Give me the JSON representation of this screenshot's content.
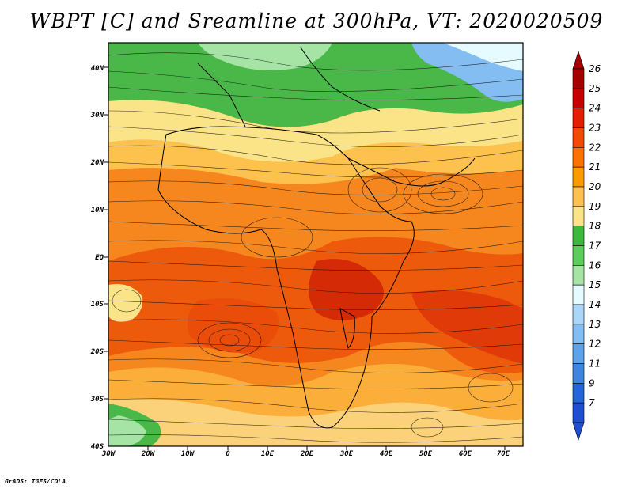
{
  "title": "WBPT [C] and Sreamline at 300hPa, VT: 2020020509",
  "footer": "GrADS: IGES/COLA",
  "map": {
    "lat_labels": [
      "40N",
      "30N",
      "20N",
      "10N",
      "EQ",
      "10S",
      "20S",
      "30S",
      "40S"
    ],
    "lon_labels": [
      "30W",
      "20W",
      "10W",
      "0",
      "10E",
      "20E",
      "30E",
      "40E",
      "50E",
      "60E",
      "70E"
    ]
  },
  "colorbar": {
    "levels": [
      "26",
      "25",
      "24",
      "23",
      "22",
      "21",
      "20",
      "19",
      "18",
      "17",
      "16",
      "15",
      "14",
      "13",
      "12",
      "11",
      "9",
      "7"
    ],
    "colors": [
      "#a50000",
      "#c60000",
      "#e22000",
      "#f24a00",
      "#fb7200",
      "#fd9a00",
      "#fdc14e",
      "#fbe487",
      "#3cb83c",
      "#5ccc5c",
      "#a6e4a6",
      "#e6fbff",
      "#aad6f7",
      "#84bdf1",
      "#5ea2eb",
      "#3c86e2",
      "#2266da",
      "#1f4fd0"
    ]
  }
}
